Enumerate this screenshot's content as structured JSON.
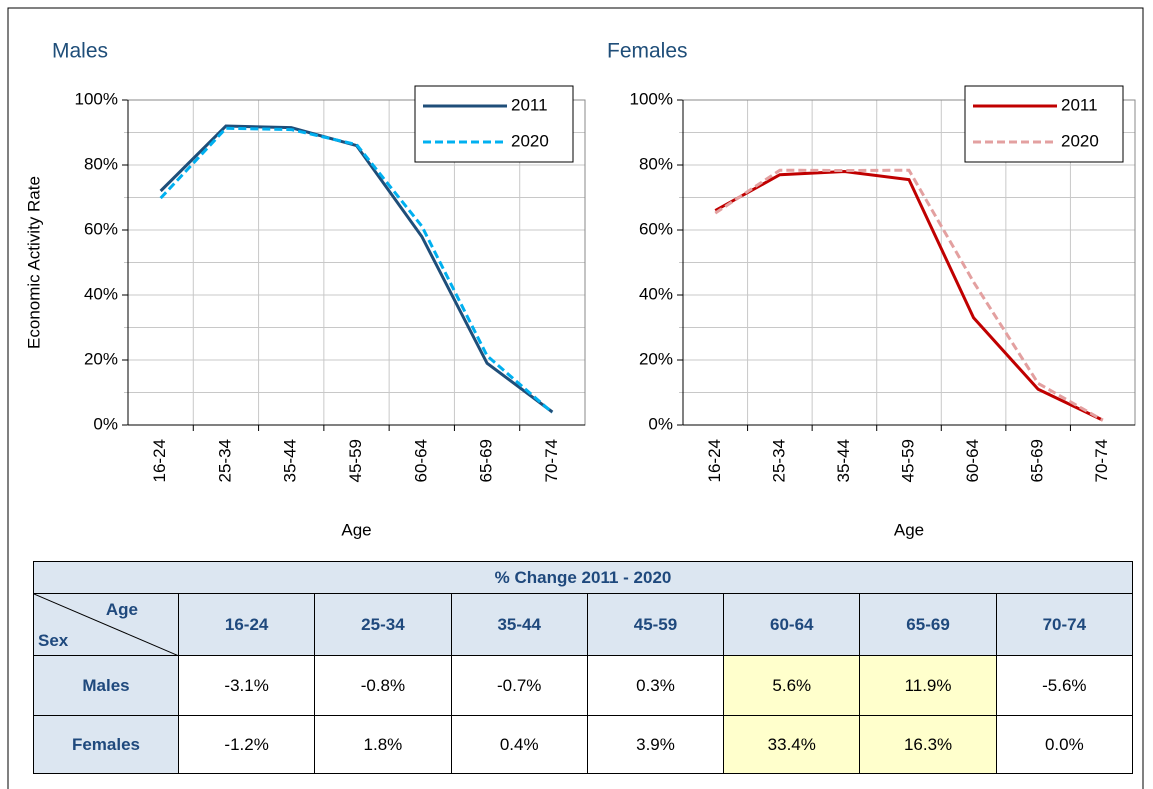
{
  "chart_data": [
    {
      "type": "line",
      "title": "Males",
      "y_label": "Economic Activity Rate",
      "x_label": "Age",
      "categories": [
        "16-24",
        "25-34",
        "35-44",
        "45-59",
        "60-64",
        "65-69",
        "70-74"
      ],
      "series": [
        {
          "name": "2011",
          "color": "#1f4e79",
          "dashed": false,
          "values": [
            72,
            92,
            91.5,
            86,
            58,
            19,
            4
          ]
        },
        {
          "name": "2020",
          "color": "#00b0f0",
          "dashed": true,
          "values": [
            69.8,
            91.3,
            90.9,
            86.3,
            61.2,
            21.3,
            3.8
          ]
        }
      ],
      "ylim": [
        0,
        100
      ],
      "yticks": [
        {
          "value": 0,
          "label": "0%"
        },
        {
          "value": 20,
          "label": "20%"
        },
        {
          "value": 40,
          "label": "40%"
        },
        {
          "value": 60,
          "label": "60%"
        },
        {
          "value": 80,
          "label": "80%"
        },
        {
          "value": 100,
          "label": "100%"
        }
      ],
      "grid": true,
      "minor_grid": true,
      "legend": "upper-right"
    },
    {
      "type": "line",
      "title": "Females",
      "x_label": "Age",
      "categories": [
        "16-24",
        "25-34",
        "35-44",
        "45-59",
        "60-64",
        "65-69",
        "70-74"
      ],
      "series": [
        {
          "name": "2011",
          "color": "#c00000",
          "dashed": false,
          "values": [
            66,
            77,
            78,
            75.5,
            33,
            11,
            1.5
          ]
        },
        {
          "name": "2020",
          "color": "#e3a0a0",
          "dashed": true,
          "values": [
            65.2,
            78.4,
            78.3,
            78.4,
            44,
            12.8,
            1.5
          ]
        }
      ],
      "ylim": [
        0,
        100
      ],
      "yticks": [
        {
          "value": 0,
          "label": "0%"
        },
        {
          "value": 20,
          "label": "20%"
        },
        {
          "value": 40,
          "label": "40%"
        },
        {
          "value": 60,
          "label": "60%"
        },
        {
          "value": 80,
          "label": "80%"
        },
        {
          "value": 100,
          "label": "100%"
        }
      ],
      "grid": true,
      "minor_grid": true,
      "legend": "upper-right"
    }
  ],
  "table": {
    "title": "% Change 2011 - 2020",
    "corner_column": "Age",
    "corner_row": "Sex",
    "columns": [
      "16-24",
      "25-34",
      "35-44",
      "45-59",
      "60-64",
      "65-69",
      "70-74"
    ],
    "highlight_columns": [
      4,
      5
    ],
    "highlight_color": "#ffffcc",
    "rows": [
      {
        "label": "Males",
        "values": [
          "-3.1%",
          "-0.8%",
          "-0.7%",
          "0.3%",
          "5.6%",
          "11.9%",
          "-5.6%"
        ]
      },
      {
        "label": "Females",
        "values": [
          "-1.2%",
          "1.8%",
          "0.4%",
          "3.9%",
          "33.4%",
          "16.3%",
          "0.0%"
        ]
      }
    ]
  }
}
